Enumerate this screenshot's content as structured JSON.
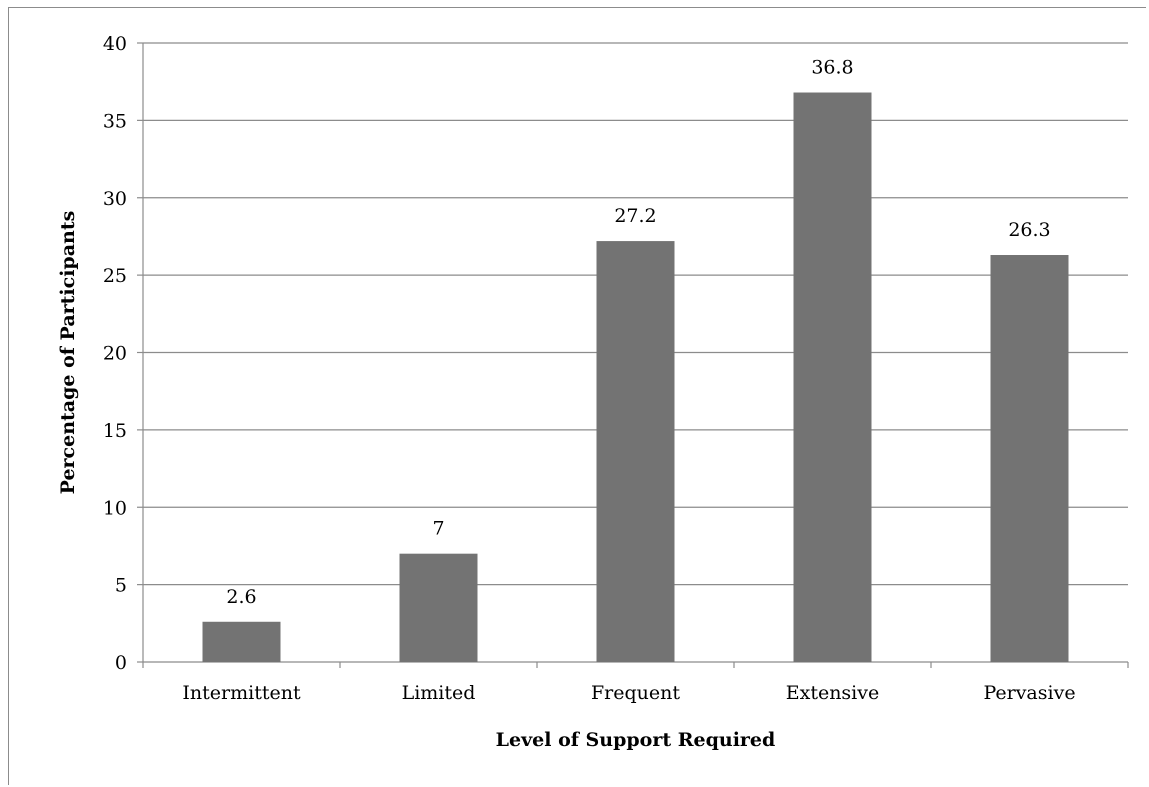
{
  "chart_data": {
    "type": "bar",
    "categories": [
      "Intermittent",
      "Limited",
      "Frequent",
      "Extensive",
      "Pervasive"
    ],
    "values": [
      2.6,
      7,
      27.2,
      36.8,
      26.3
    ],
    "data_labels": [
      "2.6",
      "7",
      "27.2",
      "36.8",
      "26.3"
    ],
    "title": "",
    "xlabel": "Level of Support Required",
    "ylabel": "Percentage of Participants",
    "ylim": [
      0,
      40
    ],
    "yticks": [
      0,
      5,
      10,
      15,
      20,
      25,
      30,
      35,
      40
    ],
    "grid": true,
    "legend": "none",
    "colors": {
      "bar": "#737373",
      "grid": "#8c8c8c",
      "axis": "#8c8c8c"
    }
  }
}
